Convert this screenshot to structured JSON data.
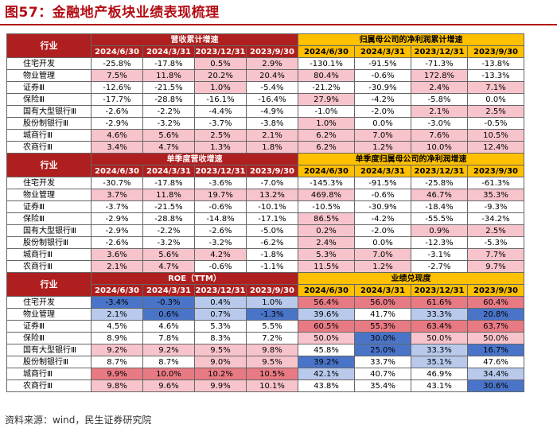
{
  "title": "图57：金融地产板块业绩表现梳理",
  "source": "资料来源：wind，民生证券研究院",
  "colors": {
    "header_red": "#b01f1f",
    "header_gold": "#ffc000",
    "pos_pink": "#f8c4cc",
    "pos_red": "#e87a84",
    "neg_blue": "#4a74c8",
    "neg_lightblue": "#b8c9ec"
  },
  "sections": [
    {
      "corner": "行业",
      "left_title": "营收累计增速",
      "right_title": "归属母公司的净利润累计增速",
      "dates": [
        "2024/6/30",
        "2024/3/31",
        "2023/12/31",
        "2023/9/30"
      ],
      "rows": [
        {
          "label": "住宅开发",
          "values": [
            "-25.8%",
            "-17.8%",
            "0.5%",
            "2.9%",
            "-130.1%",
            "-91.5%",
            "-71.3%",
            "-13.8%"
          ],
          "shade": [
            "",
            "",
            "p",
            "p",
            "",
            "",
            "",
            ""
          ]
        },
        {
          "label": "物业管理",
          "values": [
            "7.5%",
            "11.8%",
            "20.2%",
            "20.4%",
            "80.4%",
            "-0.6%",
            "172.8%",
            "-13.3%"
          ],
          "shade": [
            "p",
            "p",
            "p",
            "p",
            "p",
            "",
            "p",
            ""
          ]
        },
        {
          "label": "证券Ⅲ",
          "values": [
            "-12.6%",
            "-21.5%",
            "1.0%",
            "-5.4%",
            "-21.2%",
            "-30.9%",
            "2.4%",
            "7.1%"
          ],
          "shade": [
            "",
            "",
            "p",
            "",
            "",
            "",
            "p",
            "p"
          ]
        },
        {
          "label": "保险Ⅲ",
          "values": [
            "-17.7%",
            "-28.8%",
            "-16.1%",
            "-16.4%",
            "27.9%",
            "-4.2%",
            "-5.8%",
            "0.0%"
          ],
          "shade": [
            "",
            "",
            "",
            "",
            "p",
            "",
            "",
            ""
          ]
        },
        {
          "label": "国有大型银行Ⅲ",
          "values": [
            "-2.6%",
            "-2.2%",
            "-4.4%",
            "-4.9%",
            "-1.0%",
            "-2.0%",
            "2.1%",
            "2.5%"
          ],
          "shade": [
            "",
            "",
            "",
            "",
            "",
            "",
            "p",
            "p"
          ]
        },
        {
          "label": "股份制银行Ⅲ",
          "values": [
            "-2.9%",
            "-3.2%",
            "-3.7%",
            "-3.8%",
            "1.0%",
            "0.0%",
            "-3.0%",
            "-0.5%"
          ],
          "shade": [
            "",
            "",
            "",
            "",
            "p",
            "",
            "",
            ""
          ]
        },
        {
          "label": "城商行Ⅲ",
          "values": [
            "4.6%",
            "5.6%",
            "2.5%",
            "2.1%",
            "6.2%",
            "7.0%",
            "7.6%",
            "10.5%"
          ],
          "shade": [
            "p",
            "p",
            "p",
            "p",
            "p",
            "p",
            "p",
            "p"
          ]
        },
        {
          "label": "农商行Ⅲ",
          "values": [
            "3.4%",
            "4.7%",
            "1.3%",
            "1.8%",
            "6.2%",
            "1.2%",
            "10.0%",
            "12.4%"
          ],
          "shade": [
            "p",
            "p",
            "p",
            "p",
            "p",
            "p",
            "p",
            "p"
          ]
        }
      ]
    },
    {
      "corner": "行业",
      "left_title": "单季度营收增速",
      "right_title": "单季度归属母公司的净利润增速",
      "dates": [
        "2024/6/30",
        "2024/3/31",
        "2023/12/31",
        "2023/9/30"
      ],
      "rows": [
        {
          "label": "住宅开发",
          "values": [
            "-30.7%",
            "-17.8%",
            "-3.6%",
            "-7.0%",
            "-145.3%",
            "-91.5%",
            "-25.8%",
            "-61.3%"
          ],
          "shade": [
            "",
            "",
            "",
            "",
            "",
            "",
            "",
            ""
          ]
        },
        {
          "label": "物业管理",
          "values": [
            "3.7%",
            "11.8%",
            "19.7%",
            "13.2%",
            "469.8%",
            "-0.6%",
            "46.7%",
            "35.3%"
          ],
          "shade": [
            "p",
            "p",
            "p",
            "p",
            "p",
            "",
            "p",
            "p"
          ]
        },
        {
          "label": "证券Ⅲ",
          "values": [
            "-3.7%",
            "-21.5%",
            "-0.6%",
            "-10.1%",
            "-10.5%",
            "-30.9%",
            "-18.4%",
            "-9.3%"
          ],
          "shade": [
            "",
            "",
            "",
            "",
            "",
            "",
            "",
            ""
          ]
        },
        {
          "label": "保险Ⅲ",
          "values": [
            "-2.9%",
            "-28.8%",
            "-14.8%",
            "-17.1%",
            "86.5%",
            "-4.2%",
            "-55.5%",
            "-34.2%"
          ],
          "shade": [
            "",
            "",
            "",
            "",
            "p",
            "",
            "",
            ""
          ]
        },
        {
          "label": "国有大型银行Ⅲ",
          "values": [
            "-2.9%",
            "-2.2%",
            "-2.6%",
            "-5.0%",
            "0.2%",
            "-2.0%",
            "0.9%",
            "2.5%"
          ],
          "shade": [
            "",
            "",
            "",
            "",
            "p",
            "",
            "p",
            "p"
          ]
        },
        {
          "label": "股份制银行Ⅲ",
          "values": [
            "-2.6%",
            "-3.2%",
            "-3.2%",
            "-6.2%",
            "2.4%",
            "0.0%",
            "-12.3%",
            "-5.3%"
          ],
          "shade": [
            "",
            "",
            "",
            "",
            "p",
            "",
            "",
            ""
          ]
        },
        {
          "label": "城商行Ⅲ",
          "values": [
            "3.6%",
            "5.6%",
            "4.2%",
            "-1.8%",
            "5.3%",
            "7.0%",
            "-3.1%",
            "7.7%"
          ],
          "shade": [
            "p",
            "p",
            "p",
            "",
            "p",
            "p",
            "",
            "p"
          ]
        },
        {
          "label": "农商行Ⅲ",
          "values": [
            "2.1%",
            "4.7%",
            "-0.6%",
            "-1.1%",
            "11.5%",
            "1.2%",
            "-2.7%",
            "9.7%"
          ],
          "shade": [
            "p",
            "p",
            "",
            "",
            "p",
            "p",
            "",
            "p"
          ]
        }
      ]
    },
    {
      "corner": "行业",
      "left_title": "ROE（TTM）",
      "right_title": "业绩兑现度",
      "dates": [
        "2024/6/30",
        "2024/3/31",
        "2023/12/31",
        "2023/9/30"
      ],
      "rows": [
        {
          "label": "住宅开发",
          "values": [
            "-3.4%",
            "-0.3%",
            "0.4%",
            "1.0%",
            "56.4%",
            "56.0%",
            "61.6%",
            "60.4%"
          ],
          "shade": [
            "B",
            "B",
            "b",
            "b",
            "r",
            "r",
            "r",
            "r"
          ]
        },
        {
          "label": "物业管理",
          "values": [
            "2.1%",
            "0.6%",
            "0.7%",
            "-1.3%",
            "39.6%",
            "41.7%",
            "33.3%",
            "20.8%"
          ],
          "shade": [
            "b",
            "B",
            "b",
            "B",
            "b",
            "",
            "b",
            "B"
          ]
        },
        {
          "label": "证券Ⅲ",
          "values": [
            "4.5%",
            "4.6%",
            "5.3%",
            "5.5%",
            "60.5%",
            "55.3%",
            "63.4%",
            "63.7%"
          ],
          "shade": [
            "",
            "",
            "",
            "",
            "r",
            "r",
            "r",
            "r"
          ]
        },
        {
          "label": "保险Ⅲ",
          "values": [
            "8.9%",
            "7.8%",
            "8.3%",
            "7.2%",
            "50.0%",
            "30.0%",
            "50.0%",
            "50.0%"
          ],
          "shade": [
            "",
            "",
            "",
            "",
            "p",
            "B",
            "p",
            "p"
          ]
        },
        {
          "label": "国有大型银行Ⅲ",
          "values": [
            "9.2%",
            "9.2%",
            "9.5%",
            "9.8%",
            "45.8%",
            "25.0%",
            "33.3%",
            "16.7%"
          ],
          "shade": [
            "p",
            "p",
            "p",
            "p",
            "",
            "B",
            "b",
            "B"
          ]
        },
        {
          "label": "股份制银行Ⅲ",
          "values": [
            "8.7%",
            "8.7%",
            "9.0%",
            "9.5%",
            "39.2%",
            "33.7%",
            "35.1%",
            "47.6%"
          ],
          "shade": [
            "",
            "",
            "p",
            "p",
            "B",
            "",
            "b",
            ""
          ]
        },
        {
          "label": "城商行Ⅲ",
          "values": [
            "9.9%",
            "10.0%",
            "10.2%",
            "10.5%",
            "42.1%",
            "40.7%",
            "46.9%",
            "34.4%"
          ],
          "shade": [
            "r",
            "r",
            "r",
            "r",
            "b",
            "",
            "",
            "b"
          ]
        },
        {
          "label": "农商行Ⅲ",
          "values": [
            "9.8%",
            "9.6%",
            "9.9%",
            "10.1%",
            "43.8%",
            "35.4%",
            "43.1%",
            "30.6%"
          ],
          "shade": [
            "p",
            "p",
            "p",
            "p",
            "",
            "",
            "",
            "B"
          ]
        }
      ]
    }
  ]
}
